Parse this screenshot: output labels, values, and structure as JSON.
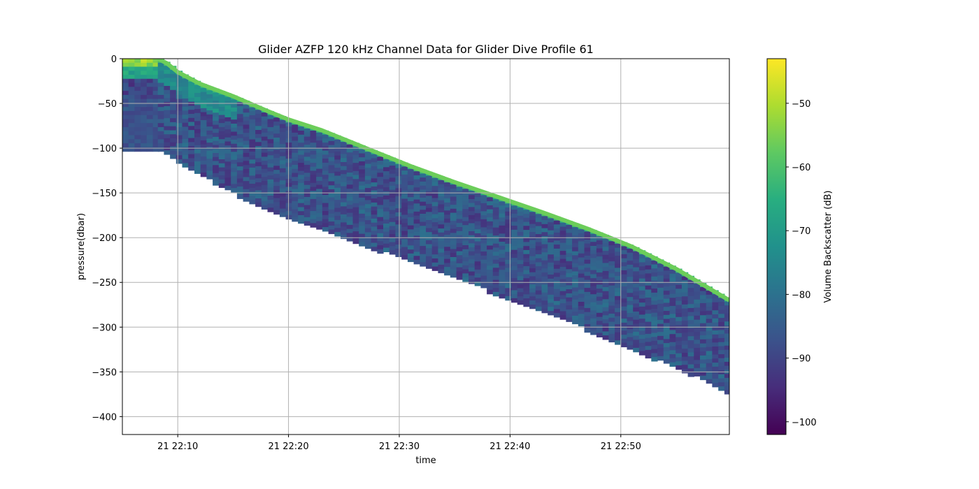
{
  "chart_data": {
    "type": "heatmap",
    "title": "Glider AZFP 120 kHz Channel Data for Glider Dive Profile  61",
    "xlabel": "time",
    "ylabel": "pressure(dbar)",
    "colorbar_label": "Volume Backscatter (dB)",
    "colormap": "viridis",
    "x_range_minutes": [
      "21 22:05",
      "21 22:59"
    ],
    "x_ticks": [
      "21 22:10",
      "21 22:20",
      "21 22:30",
      "21 22:40",
      "21 22:50"
    ],
    "ylim": [
      -420,
      0
    ],
    "y_ticks": [
      0,
      -50,
      -100,
      -150,
      -200,
      -250,
      -300,
      -350,
      -400
    ],
    "colorbar_range": [
      -102,
      -43
    ],
    "colorbar_ticks": [
      -50,
      -60,
      -70,
      -80,
      -90,
      -100
    ],
    "grid": true,
    "surface_trace": {
      "label": "",
      "color": "#6ccd5a",
      "time_minutes_after_22_05": [
        3.2,
        4.0,
        5,
        7,
        10,
        13,
        15,
        18,
        22,
        26,
        30,
        34,
        38,
        42,
        46,
        50,
        54.8
      ],
      "pressure_dbar": [
        0,
        -5,
        -15,
        -28,
        -42,
        -58,
        -68,
        -80,
        -100,
        -120,
        -138,
        -155,
        -172,
        -190,
        -210,
        -235,
        -270
      ]
    },
    "bottom_trace": {
      "time_minutes_after_22_05": [
        3.2,
        5,
        10,
        15,
        20,
        25,
        30,
        35,
        40,
        45,
        50,
        54.8
      ],
      "pressure_dbar": [
        -102,
        -115,
        -150,
        -178,
        -200,
        -222,
        -245,
        -268,
        -292,
        -320,
        -345,
        -373
      ]
    },
    "initial_column": {
      "time_start_minutes": 0,
      "time_end_minutes": 3.0,
      "pressure_bottom_dbar": -102
    }
  }
}
